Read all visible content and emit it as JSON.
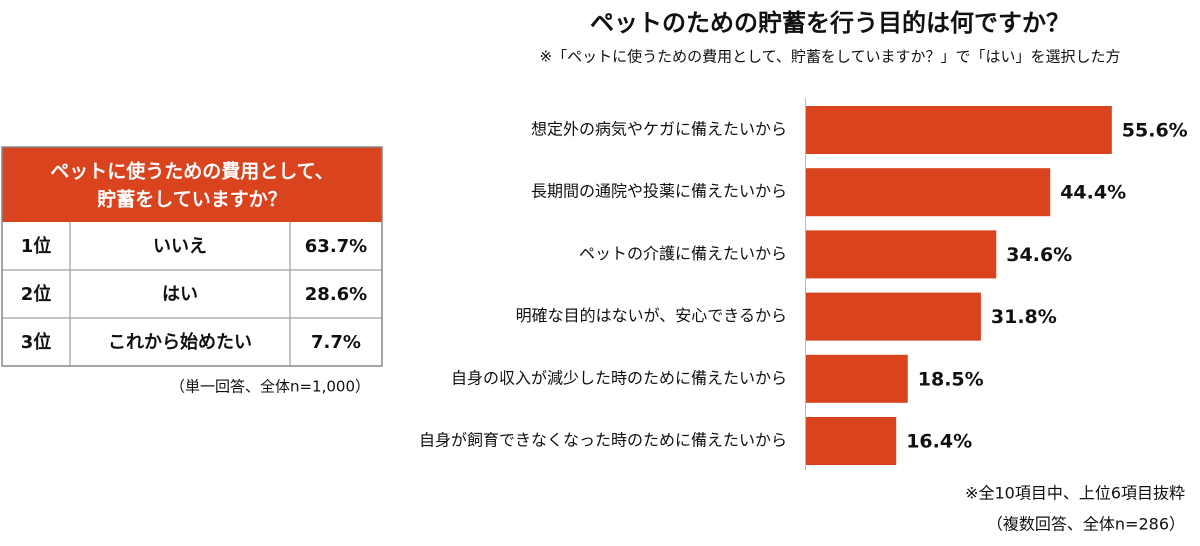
{
  "table": {
    "header": [
      "ペットに使うための費用として、",
      "貯蓄をしていますか？"
    ],
    "rows": [
      [
        "1位",
        "いいえ",
        "63.7%"
      ],
      [
        "2位",
        "はい",
        "28.6%"
      ],
      [
        "3位",
        "これから始めたい",
        "7.7%"
      ]
    ],
    "note": "（単一回答、全体n=1,000）"
  },
  "chart_data": {
    "type": "bar",
    "orientation": "horizontal",
    "title": "ペットのための貯蓄を行う目的は何ですか？",
    "subtitle": "※「ペットに使うための費用として、貯蓄をしていますか？」で「はい」を選択した方",
    "categories": [
      "想定外の病気やケガに備えたいから",
      "長期間の通院や投薬に備えたいから",
      "ペットの介護に備えたいから",
      "明確な目的はないが、安心できるから",
      "自身の収入が減少した時のために備えたいから",
      "自身が飼育できなくなった時のために備えたいから"
    ],
    "values": [
      55.6,
      44.4,
      34.6,
      31.8,
      18.5,
      16.4
    ],
    "value_labels": [
      "55.6%",
      "44.4%",
      "34.6%",
      "31.8%",
      "18.5%",
      "16.4%"
    ],
    "color": "#d9431e",
    "notes": [
      "※全10項目中、上位6項目抜粋",
      "（複数回答、全体n=286）"
    ]
  }
}
